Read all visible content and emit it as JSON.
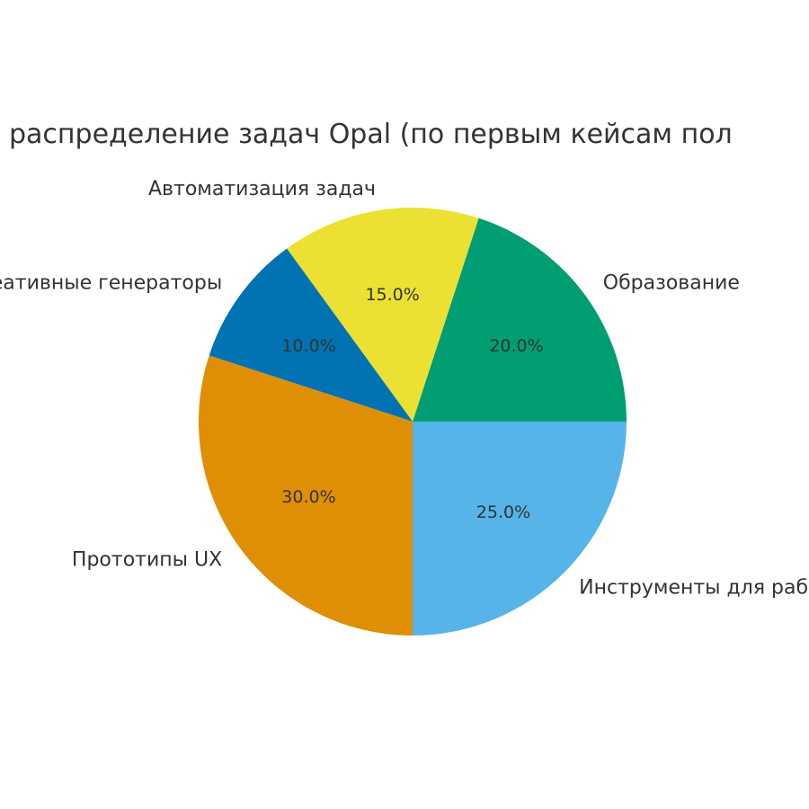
{
  "chart_data": {
    "type": "pie",
    "title": "распределение задач Opal (по первым кейсам пол",
    "start_angle_deg": 0,
    "direction": "counterclockwise",
    "slices": [
      {
        "label": "Образование",
        "value": 20.0,
        "pct_text": "20.0%",
        "color": "#029E73"
      },
      {
        "label": "Автоматизация задач",
        "value": 15.0,
        "pct_text": "15.0%",
        "color": "#ECE133"
      },
      {
        "label": "Креативные генераторы",
        "value": 10.0,
        "pct_text": "10.0%",
        "color": "#0173B2"
      },
      {
        "label": "Прототипы UX",
        "value": 30.0,
        "pct_text": "30.0%",
        "color": "#DE8F05"
      },
      {
        "label": "Инструменты для работы",
        "value": 25.0,
        "pct_text": "25.0%",
        "color": "#56B4E9"
      }
    ]
  }
}
